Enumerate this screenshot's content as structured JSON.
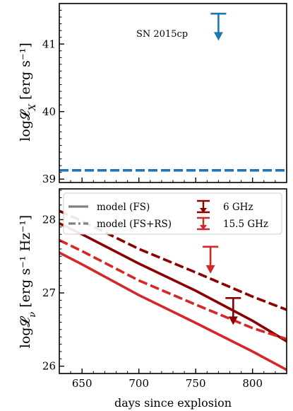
{
  "chart_data": [
    {
      "type": "line",
      "ylabel": "log𝓛",
      "ylabel_subscript": "X",
      "ylabel_unit": "[erg s⁻¹]",
      "xlim": [
        630,
        830
      ],
      "ylim": [
        38.95,
        41.6
      ],
      "yticks": [
        39,
        40,
        41
      ],
      "ytick_labels": [
        "39",
        "40",
        "41"
      ],
      "annotation": "SN 2015cp",
      "colors": {
        "xray": "#1f77b4"
      },
      "upper_limits": [
        {
          "x": 770,
          "y": 41.45,
          "color": "#1f77b4"
        }
      ],
      "series": [
        {
          "style": "dashed",
          "color": "#1f77b4",
          "x": [
            630,
            830
          ],
          "y": [
            39.13,
            39.13
          ]
        }
      ]
    },
    {
      "type": "line",
      "ylabel": "log𝓛",
      "ylabel_subscript": "ν",
      "ylabel_unit": "[erg s⁻¹ Hz⁻¹]",
      "xlabel": "days since explosion",
      "xlim": [
        630,
        830
      ],
      "ylim": [
        25.9,
        28.42
      ],
      "xticks": [
        650,
        700,
        750,
        800
      ],
      "xtick_labels": [
        "650",
        "700",
        "750",
        "800"
      ],
      "yticks": [
        26,
        27,
        28
      ],
      "ytick_labels": [
        "26",
        "27",
        "28"
      ],
      "legend": {
        "position": "top",
        "entries": [
          {
            "label": "model (FS)",
            "kind": "line",
            "style": "solid",
            "color": "#808080"
          },
          {
            "label": "model (FS+RS)",
            "kind": "line",
            "style": "dashdot",
            "color": "#808080"
          },
          {
            "label": "6 GHz",
            "kind": "limit",
            "color": "#8b0000"
          },
          {
            "label": "15.5 GHz",
            "kind": "limit",
            "color": "#d62728"
          }
        ]
      },
      "colors": {
        "ghz6": "#8b0000",
        "ghz15": "#d62728"
      },
      "upper_limits": [
        {
          "x": 783,
          "y": 26.93,
          "color": "#8b0000"
        },
        {
          "x": 763,
          "y": 27.63,
          "color": "#d62728"
        }
      ],
      "series": [
        {
          "style": "solid",
          "color": "#8b0000",
          "x": [
            630,
            650,
            700,
            750,
            800,
            830
          ],
          "y": [
            27.95,
            27.8,
            27.4,
            27.03,
            26.62,
            26.34
          ]
        },
        {
          "style": "dashed",
          "color": "#8b0000",
          "x": [
            630,
            650,
            700,
            750,
            800,
            830
          ],
          "y": [
            28.12,
            27.98,
            27.6,
            27.28,
            26.95,
            26.77
          ]
        },
        {
          "style": "solid",
          "color": "#d62728",
          "x": [
            630,
            650,
            700,
            750,
            800,
            830
          ],
          "y": [
            27.55,
            27.39,
            26.97,
            26.59,
            26.2,
            25.95
          ]
        },
        {
          "style": "dashed",
          "color": "#d62728",
          "x": [
            630,
            650,
            700,
            750,
            800,
            830
          ],
          "y": [
            27.72,
            27.57,
            27.17,
            26.84,
            26.52,
            26.37
          ]
        }
      ]
    }
  ]
}
